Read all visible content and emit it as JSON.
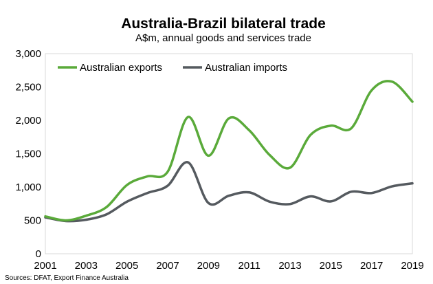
{
  "chart_data": {
    "type": "line",
    "title": "Australia-Brazil bilateral trade",
    "subtitle": "A$m, annual goods and services trade",
    "source": "Sources: DFAT, Export Finance Australia",
    "xlabel": "",
    "ylabel": "",
    "x": [
      2001,
      2002,
      2003,
      2004,
      2005,
      2006,
      2007,
      2008,
      2009,
      2010,
      2011,
      2012,
      2013,
      2014,
      2015,
      2016,
      2017,
      2018,
      2019
    ],
    "xticks": [
      "2001",
      "2003",
      "2005",
      "2007",
      "2009",
      "2011",
      "2013",
      "2015",
      "2017",
      "2019"
    ],
    "yticks": [
      "0",
      "500",
      "1,000",
      "1,500",
      "2,000",
      "2,500",
      "3,000"
    ],
    "ylim": [
      0,
      3000
    ],
    "grid": false,
    "legend_position": "top-left",
    "series": [
      {
        "name": "Australian exports",
        "color": "#5aaa3a",
        "values": [
          560,
          500,
          570,
          700,
          1030,
          1160,
          1230,
          2050,
          1470,
          2030,
          1850,
          1480,
          1290,
          1780,
          1920,
          1880,
          2450,
          2580,
          2280
        ]
      },
      {
        "name": "Australian imports",
        "color": "#555a5f",
        "values": [
          545,
          490,
          510,
          590,
          780,
          910,
          1020,
          1370,
          760,
          870,
          920,
          780,
          745,
          860,
          785,
          930,
          910,
          1010,
          1055
        ]
      }
    ]
  }
}
